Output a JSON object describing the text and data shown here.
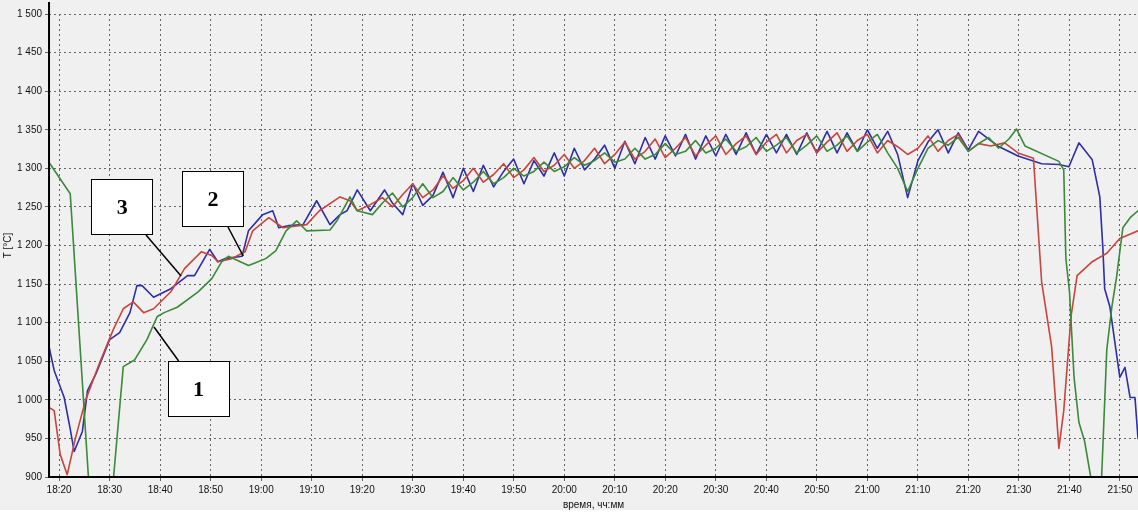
{
  "chart_data": {
    "type": "line",
    "xlabel": "время, чч:мм",
    "ylabel": "T [°C]",
    "grid": true,
    "marker": "none",
    "line_style": "solid",
    "xlim": [
      18.3,
      21.893
    ],
    "ylim": [
      900,
      1500
    ],
    "xticks": [
      {
        "value": 18.3333,
        "label": "18:20"
      },
      {
        "value": 18.5,
        "label": "18:30"
      },
      {
        "value": 18.6667,
        "label": "18:40"
      },
      {
        "value": 18.8333,
        "label": "18:50"
      },
      {
        "value": 19,
        "label": "19:00"
      },
      {
        "value": 19.1667,
        "label": "19:10"
      },
      {
        "value": 19.3333,
        "label": "19:20"
      },
      {
        "value": 19.5,
        "label": "19:30"
      },
      {
        "value": 19.6667,
        "label": "19:40"
      },
      {
        "value": 19.8333,
        "label": "19:50"
      },
      {
        "value": 20,
        "label": "20:00"
      },
      {
        "value": 20.1667,
        "label": "20:10"
      },
      {
        "value": 20.3333,
        "label": "20:20"
      },
      {
        "value": 20.5,
        "label": "20:30"
      },
      {
        "value": 20.6667,
        "label": "20:40"
      },
      {
        "value": 20.8333,
        "label": "20:50"
      },
      {
        "value": 21,
        "label": "21:00"
      },
      {
        "value": 21.1667,
        "label": "21:10"
      },
      {
        "value": 21.3333,
        "label": "21:20"
      },
      {
        "value": 21.5,
        "label": "21:30"
      },
      {
        "value": 21.6667,
        "label": "21:40"
      },
      {
        "value": 21.8333,
        "label": "21:50"
      }
    ],
    "yticks": [
      900,
      950,
      {
        "value": 1000,
        "label": "1 000"
      },
      {
        "value": 1050,
        "label": "1 050"
      },
      {
        "value": 1100,
        "label": "1 100"
      },
      {
        "value": 1150,
        "label": "1 150"
      },
      {
        "value": 1200,
        "label": "1 200"
      },
      {
        "value": 1250,
        "label": "1 250"
      },
      {
        "value": 1300,
        "label": "1 300"
      },
      {
        "value": 1350,
        "label": "1 350"
      },
      {
        "value": 1400,
        "label": "1 400"
      },
      {
        "value": 1450,
        "label": "1 450"
      },
      {
        "value": 1500,
        "label": "1 500"
      }
    ],
    "annotations": [
      {
        "text": "3",
        "x": 18.736,
        "y": 1161
      },
      {
        "text": "2",
        "x": 18.94,
        "y": 1186
      },
      {
        "text": "1",
        "x": 18.645,
        "y": 1095
      }
    ],
    "series": [
      {
        "color": "#3a8a3a",
        "x": [
          18.303,
          18.37,
          18.43,
          18.48,
          18.513,
          18.545,
          18.583,
          18.623,
          18.657,
          18.68,
          18.723,
          18.792,
          18.837,
          18.87,
          18.892,
          18.958,
          19.015,
          19.048,
          19.082,
          19.117,
          19.15,
          19.227,
          19.25,
          19.293,
          19.317,
          19.367,
          19.4,
          19.433,
          19.467,
          19.5,
          19.533,
          19.567,
          19.6,
          19.633,
          19.667,
          19.7,
          19.733,
          19.767,
          19.8,
          19.833,
          19.867,
          19.9,
          19.933,
          19.967,
          20.0,
          20.033,
          20.067,
          20.1,
          20.133,
          20.167,
          20.2,
          20.233,
          20.267,
          20.3,
          20.333,
          20.367,
          20.4,
          20.433,
          20.467,
          20.5,
          20.533,
          20.567,
          20.6,
          20.633,
          20.667,
          20.7,
          20.733,
          20.767,
          20.8,
          20.833,
          20.867,
          20.9,
          20.933,
          20.967,
          21.0,
          21.033,
          21.067,
          21.1,
          21.133,
          21.167,
          21.2,
          21.233,
          21.267,
          21.3,
          21.333,
          21.367,
          21.4,
          21.433,
          21.467,
          21.492,
          21.52,
          21.632,
          21.648,
          21.655,
          21.667,
          21.682,
          21.698,
          21.717,
          21.737,
          21.75,
          21.773,
          21.79,
          21.807,
          21.823,
          21.843,
          21.867,
          21.893
        ],
        "values": [
          1306,
          1267,
          900,
          null,
          900,
          1043,
          1052,
          1078,
          1108,
          1113,
          1120,
          1140,
          1157,
          1179,
          1186,
          1174,
          1183,
          1193,
          1219,
          1232,
          1219,
          1220,
          1232,
          1263,
          1245,
          1240,
          1255,
          1268,
          1250,
          1262,
          1280,
          1262,
          1270,
          1288,
          1272,
          1282,
          1296,
          1280,
          1288,
          1300,
          1290,
          1296,
          1308,
          1296,
          1302,
          1314,
          1304,
          1310,
          1320,
          1308,
          1312,
          1326,
          1312,
          1318,
          1332,
          1318,
          1322,
          1336,
          1320,
          1326,
          1338,
          1322,
          1328,
          1340,
          1322,
          1330,
          1340,
          1320,
          1330,
          1342,
          1322,
          1330,
          1342,
          1322,
          1334,
          1344,
          1320,
          1300,
          1270,
          1300,
          1326,
          1336,
          1330,
          1340,
          1322,
          1332,
          1340,
          1326,
          1338,
          1351,
          1329,
          1309,
          1298,
          1183,
          1140,
          1029,
          971,
          946,
          900,
          null,
          900,
          1065,
          1121,
          1161,
          1223,
          1236,
          1245
        ]
      },
      {
        "color": "#c8453c",
        "x": [
          18.3,
          18.317,
          18.337,
          18.36,
          18.387,
          18.42,
          18.467,
          18.512,
          18.545,
          18.578,
          18.612,
          18.645,
          18.702,
          18.747,
          18.803,
          18.837,
          18.857,
          18.903,
          18.947,
          18.972,
          19.025,
          19.072,
          19.15,
          19.192,
          19.26,
          19.293,
          19.317,
          19.36,
          19.4,
          19.433,
          19.467,
          19.5,
          19.533,
          19.567,
          19.6,
          19.633,
          19.667,
          19.7,
          19.733,
          19.767,
          19.8,
          19.833,
          19.867,
          19.9,
          19.933,
          19.967,
          20.0,
          20.033,
          20.067,
          20.1,
          20.133,
          20.167,
          20.2,
          20.233,
          20.267,
          20.3,
          20.333,
          20.367,
          20.4,
          20.433,
          20.467,
          20.5,
          20.533,
          20.567,
          20.6,
          20.633,
          20.667,
          20.7,
          20.733,
          20.767,
          20.8,
          20.833,
          20.867,
          20.9,
          20.933,
          20.967,
          21.0,
          21.033,
          21.067,
          21.1,
          21.133,
          21.167,
          21.2,
          21.233,
          21.267,
          21.3,
          21.333,
          21.367,
          21.407,
          21.453,
          21.497,
          21.548,
          21.575,
          21.608,
          21.632,
          21.648,
          21.672,
          21.692,
          21.742,
          21.79,
          21.833,
          21.893
        ],
        "values": [
          990,
          986,
          929,
          903,
          950,
          999,
          1048,
          1091,
          1118,
          1127,
          1113,
          1118,
          1140,
          1170,
          1192,
          1187,
          1179,
          1183,
          1192,
          1219,
          1236,
          1223,
          1227,
          1245,
          1263,
          1258,
          1245,
          1253,
          1262,
          1250,
          1266,
          1280,
          1262,
          1272,
          1290,
          1274,
          1284,
          1300,
          1282,
          1292,
          1306,
          1288,
          1298,
          1314,
          1296,
          1304,
          1318,
          1300,
          1310,
          1326,
          1306,
          1318,
          1334,
          1312,
          1322,
          1338,
          1314,
          1326,
          1340,
          1316,
          1330,
          1342,
          1318,
          1332,
          1342,
          1318,
          1334,
          1344,
          1320,
          1336,
          1344,
          1320,
          1334,
          1346,
          1322,
          1336,
          1344,
          1320,
          1336,
          1328,
          1318,
          1326,
          1342,
          1322,
          1336,
          1344,
          1322,
          1332,
          1329,
          1333,
          1320,
          1313,
          1153,
          1069,
          937,
          986,
          1108,
          1161,
          1179,
          1190,
          1209,
          1219
        ]
      },
      {
        "color": "#2e2ea6",
        "x": [
          18.3,
          18.317,
          18.35,
          18.37,
          18.383,
          18.41,
          18.427,
          18.455,
          18.5,
          18.533,
          18.567,
          18.59,
          18.607,
          18.645,
          18.702,
          18.757,
          18.78,
          18.83,
          18.857,
          18.88,
          18.937,
          18.958,
          19.005,
          19.038,
          19.058,
          19.092,
          19.138,
          19.183,
          19.227,
          19.26,
          19.283,
          19.317,
          19.36,
          19.407,
          19.433,
          19.467,
          19.5,
          19.533,
          19.567,
          19.6,
          19.633,
          19.667,
          19.7,
          19.733,
          19.767,
          19.8,
          19.833,
          19.867,
          19.9,
          19.933,
          19.967,
          20.0,
          20.033,
          20.067,
          20.1,
          20.133,
          20.167,
          20.2,
          20.233,
          20.267,
          20.3,
          20.333,
          20.367,
          20.4,
          20.433,
          20.467,
          20.5,
          20.533,
          20.567,
          20.6,
          20.633,
          20.667,
          20.7,
          20.733,
          20.767,
          20.8,
          20.833,
          20.867,
          20.9,
          20.933,
          20.967,
          21.0,
          21.033,
          21.067,
          21.1,
          21.133,
          21.167,
          21.2,
          21.233,
          21.267,
          21.3,
          21.333,
          21.367,
          21.43,
          21.497,
          21.575,
          21.632,
          21.665,
          21.698,
          21.742,
          21.767,
          21.777,
          21.783,
          21.8,
          21.833,
          21.85,
          21.867,
          21.883,
          21.893
        ],
        "values": [
          1069,
          1038,
          1003,
          962,
          933,
          959,
          1012,
          1034,
          1078,
          1087,
          1113,
          1148,
          1148,
          1133,
          1144,
          1161,
          1161,
          1195,
          1179,
          1183,
          1186,
          1219,
          1240,
          1245,
          1223,
          1226,
          1227,
          1258,
          1227,
          1240,
          1245,
          1272,
          1245,
          1272,
          1255,
          1240,
          1280,
          1252,
          1265,
          1295,
          1262,
          1300,
          1270,
          1304,
          1276,
          1296,
          1312,
          1280,
          1310,
          1290,
          1320,
          1290,
          1326,
          1298,
          1312,
          1330,
          1300,
          1335,
          1306,
          1340,
          1312,
          1342,
          1316,
          1344,
          1312,
          1342,
          1316,
          1344,
          1318,
          1346,
          1318,
          1344,
          1320,
          1344,
          1318,
          1346,
          1320,
          1348,
          1320,
          1346,
          1322,
          1350,
          1326,
          1348,
          1318,
          1262,
          1310,
          1334,
          1350,
          1320,
          1346,
          1324,
          1348,
          1329,
          1316,
          1306,
          1305,
          1302,
          1333,
          1311,
          1263,
          1197,
          1144,
          1121,
          1029,
          1042,
          1003,
          1003,
          950
        ]
      }
    ]
  }
}
